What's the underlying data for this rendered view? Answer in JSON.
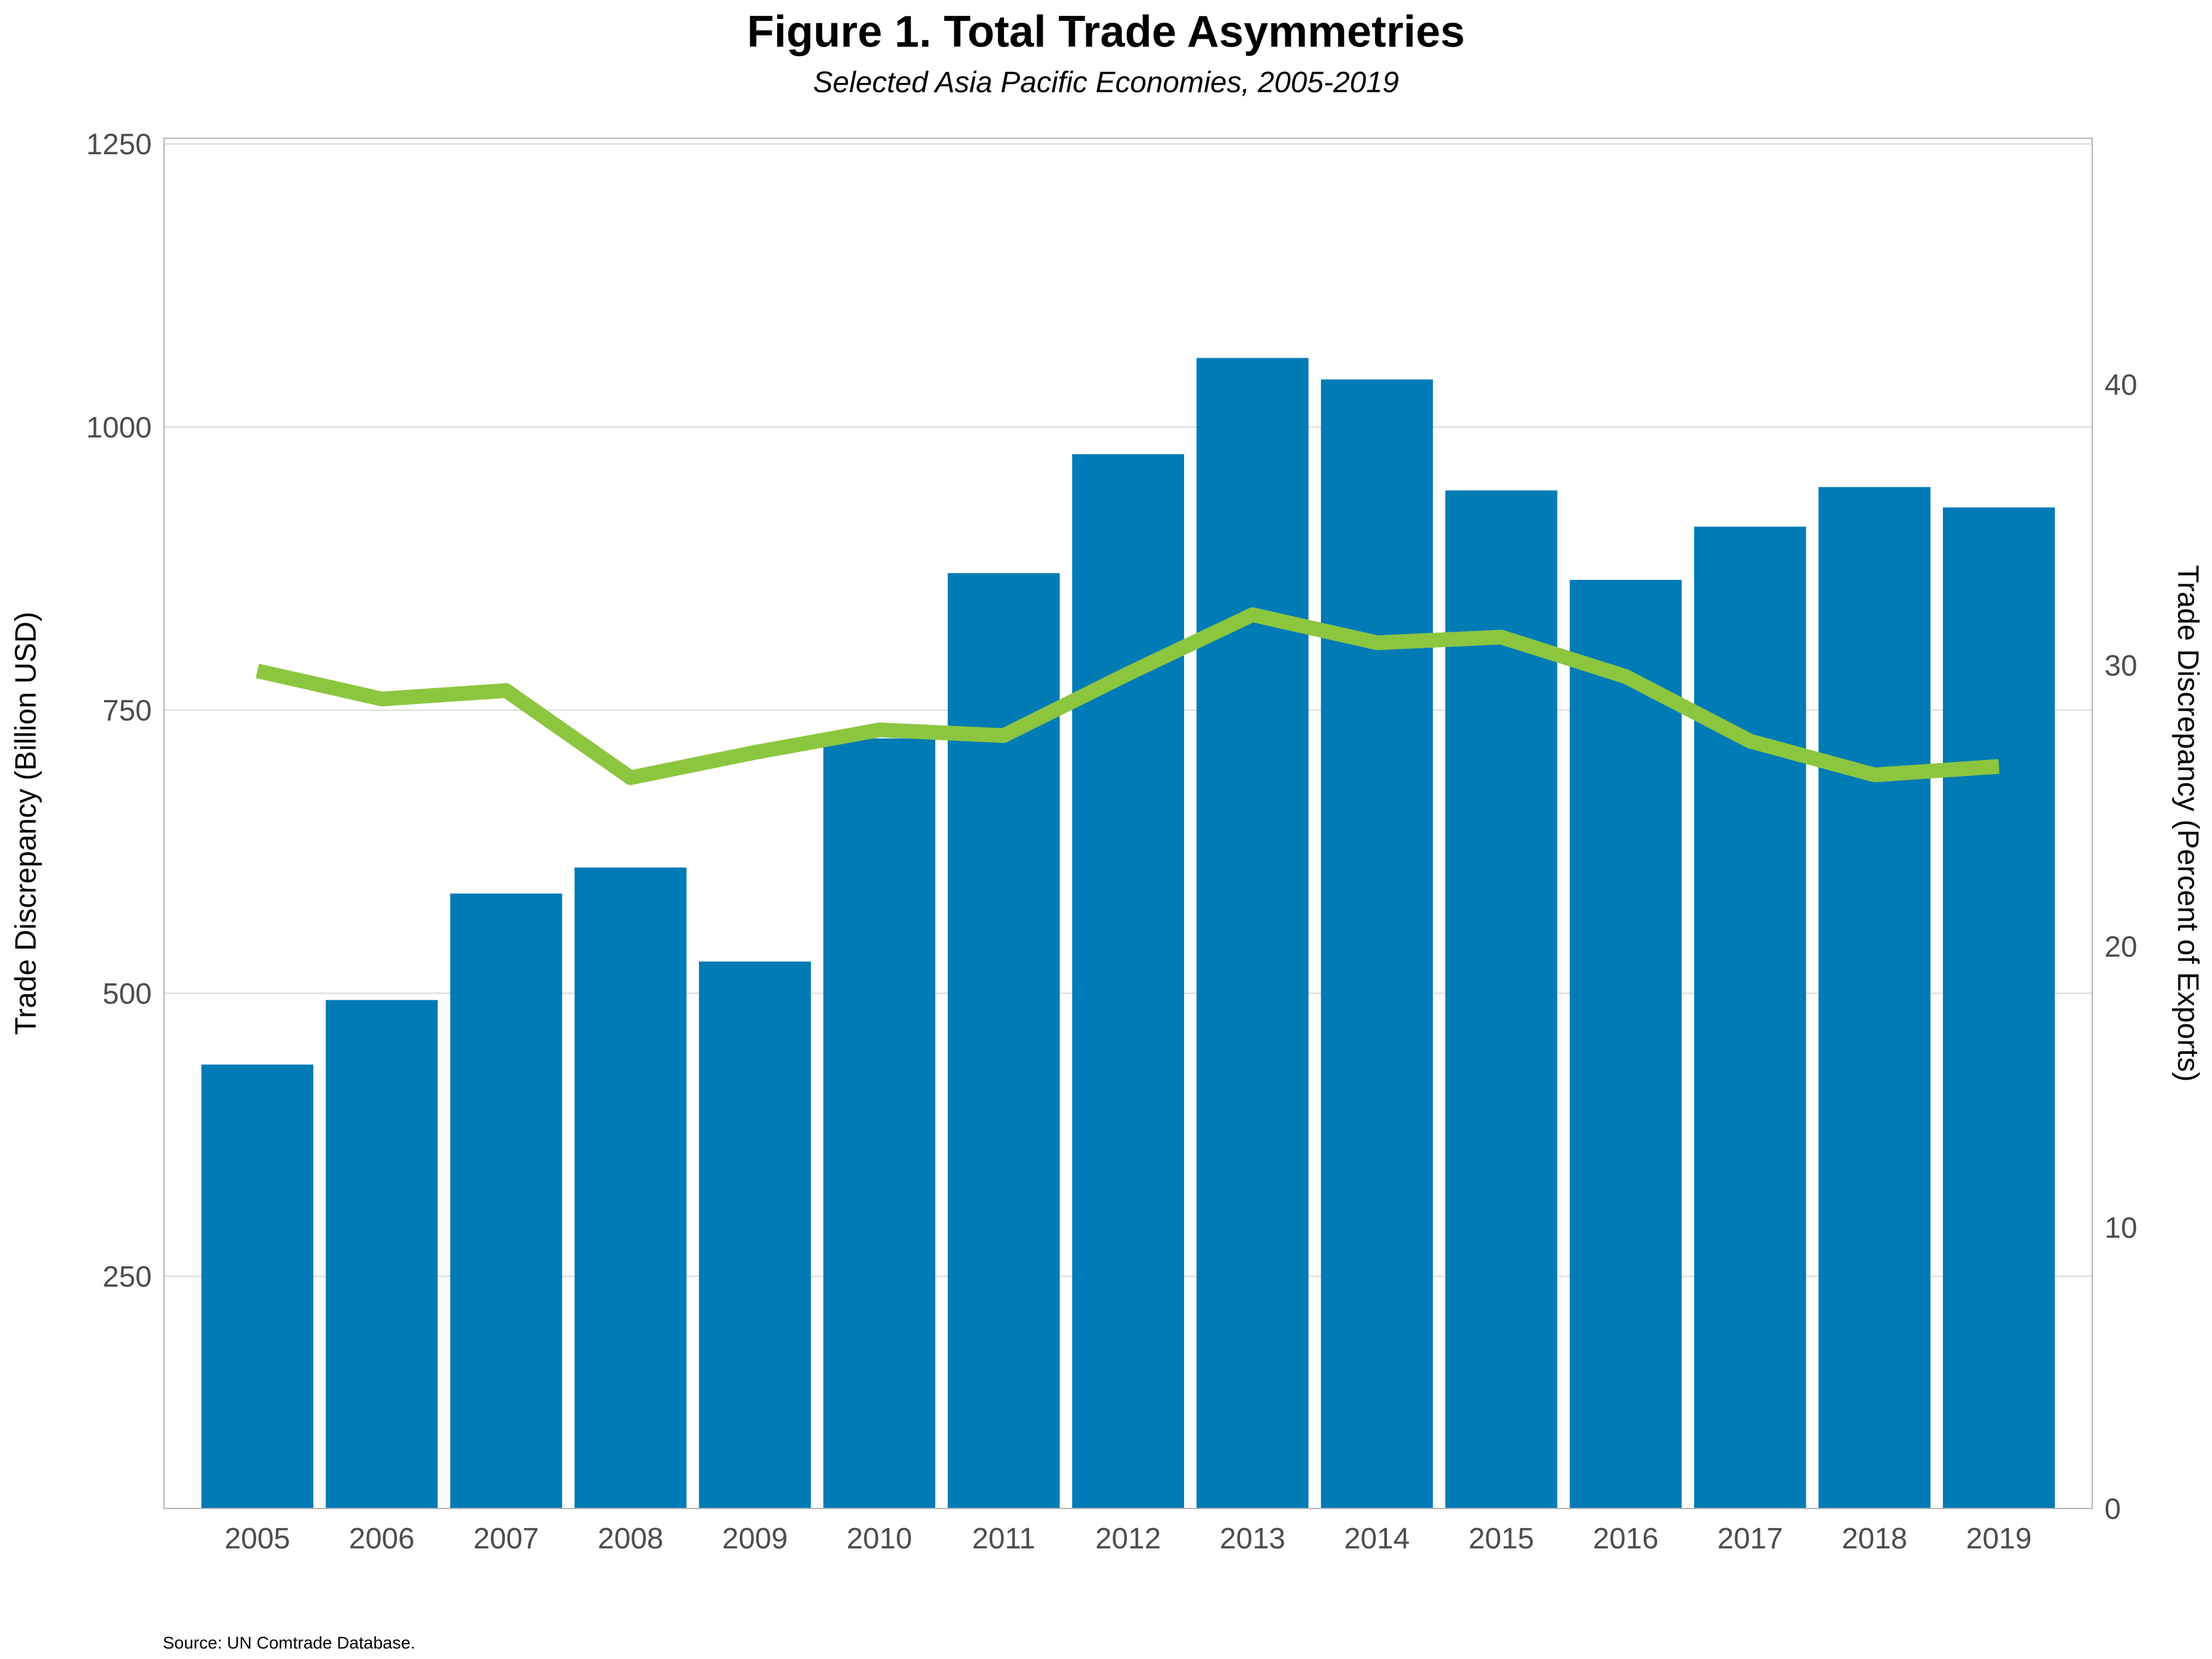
{
  "chart_data": {
    "type": "bar+line",
    "title": "Figure 1. Total Trade Asymmetries",
    "subtitle": "Selected Asia Pacific Economies, 2005-2019",
    "categories": [
      "2005",
      "2006",
      "2007",
      "2008",
      "2009",
      "2010",
      "2011",
      "2012",
      "2013",
      "2014",
      "2015",
      "2016",
      "2017",
      "2018",
      "2019"
    ],
    "series": [
      {
        "type": "bar",
        "axis": "left",
        "color": "#007bb6",
        "values": [
          437,
          494,
          588,
          611,
          528,
          725,
          871,
          976,
          1061,
          1042,
          944,
          865,
          912,
          947,
          929
        ]
      },
      {
        "type": "line",
        "axis": "right",
        "color": "#8cc63f",
        "values": [
          29.8,
          28.8,
          29.1,
          26.0,
          26.9,
          27.7,
          27.5,
          29.7,
          31.8,
          30.8,
          31.0,
          29.6,
          27.3,
          26.1,
          26.4
        ]
      }
    ],
    "ylabel": "Trade Discrepancy (Billion USD)",
    "ylabel_right": "Trade Discrepancy (Percent of Exports)",
    "ylim": [
      45,
      1255
    ],
    "yticks": [
      250,
      500,
      750,
      1000,
      1250
    ],
    "ylim_right": [
      0,
      48.75
    ],
    "yticks_right": [
      0,
      10,
      20,
      30,
      40
    ],
    "grid": true,
    "source": "Source: UN Comtrade Database."
  }
}
